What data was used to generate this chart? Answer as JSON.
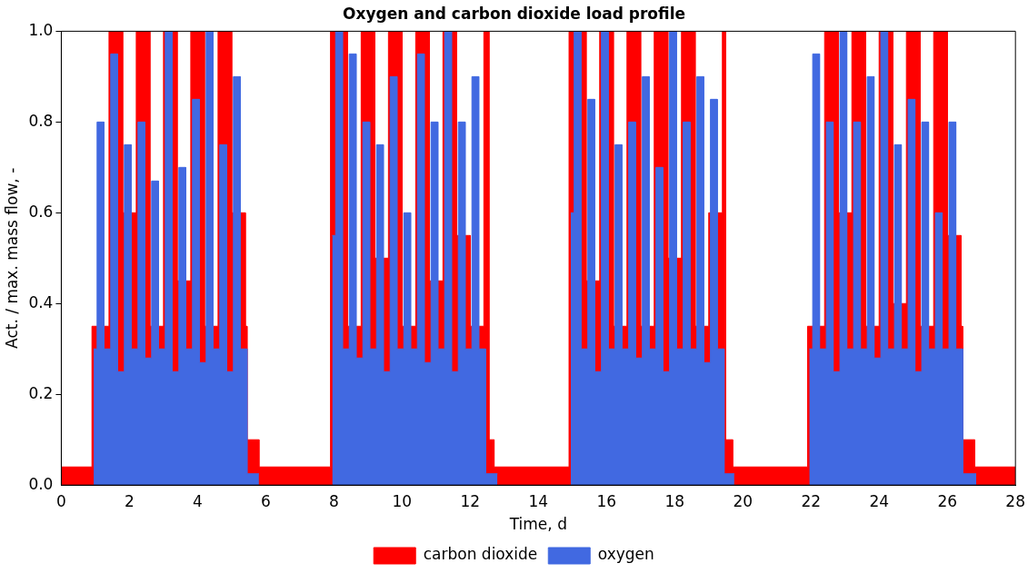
{
  "chart_data": {
    "type": "area",
    "title": "Oxygen and carbon dioxide load profile",
    "xlabel": "Time, d",
    "ylabel": "Act. / max. mass flow, -",
    "xlim": [
      0,
      28
    ],
    "xticks": [
      0,
      2,
      4,
      6,
      8,
      10,
      12,
      14,
      16,
      18,
      20,
      22,
      24,
      26,
      28
    ],
    "ylim": [
      0,
      1
    ],
    "yticks": [
      {
        "value": 0,
        "label": "0.0"
      },
      {
        "value": 0.2,
        "label": "0.2"
      },
      {
        "value": 0.4,
        "label": "0.4"
      },
      {
        "value": 0.6,
        "label": "0.6"
      },
      {
        "value": 0.8,
        "label": "0.8"
      },
      {
        "value": 1,
        "label": "1.0"
      }
    ],
    "grid": false,
    "legend": "bottom",
    "series": [
      {
        "name": "carbon dioxide",
        "color": "#ff0000",
        "x": [
          0,
          0.9,
          0.9,
          1.4,
          1.4,
          1.8,
          1.8,
          2.2,
          2.2,
          2.6,
          2.6,
          3.0,
          3.0,
          3.4,
          3.4,
          3.8,
          3.8,
          4.2,
          4.2,
          4.6,
          4.6,
          5.0,
          5.0,
          5.4,
          5.4,
          5.45,
          5.45,
          5.8,
          5.8,
          7.9,
          7.9,
          8.4,
          8.4,
          8.8,
          8.8,
          9.2,
          9.2,
          9.6,
          9.6,
          10.0,
          10.0,
          10.4,
          10.4,
          10.8,
          10.8,
          11.2,
          11.2,
          11.6,
          11.6,
          12.0,
          12.0,
          12.4,
          12.4,
          12.55,
          12.55,
          12.7,
          12.7,
          14.9,
          14.9,
          15.4,
          15.4,
          15.8,
          15.8,
          16.2,
          16.2,
          16.6,
          16.6,
          17.0,
          17.0,
          17.4,
          17.4,
          17.8,
          17.8,
          18.2,
          18.2,
          18.6,
          18.6,
          19.0,
          19.0,
          19.4,
          19.4,
          19.5,
          19.5,
          19.7,
          19.7,
          21.9,
          21.9,
          22.4,
          22.4,
          22.8,
          22.8,
          23.2,
          23.2,
          23.6,
          23.6,
          24.0,
          24.0,
          24.4,
          24.4,
          24.8,
          24.8,
          25.2,
          25.2,
          25.6,
          25.6,
          26.0,
          26.0,
          26.4,
          26.4,
          26.45,
          26.45,
          26.8,
          26.8,
          28
        ],
        "values": [
          0.04,
          0.04,
          0.35,
          0.35,
          1,
          1,
          0.6,
          0.6,
          1,
          1,
          0.35,
          0.35,
          1,
          1,
          0.45,
          0.45,
          1,
          1,
          0.35,
          0.35,
          1,
          1,
          0.6,
          0.6,
          0.35,
          0.35,
          0.1,
          0.1,
          0.04,
          0.04,
          1,
          1,
          0.35,
          0.35,
          1,
          1,
          0.5,
          0.5,
          1,
          1,
          0.35,
          0.35,
          1,
          1,
          0.45,
          0.45,
          1,
          1,
          0.55,
          0.55,
          0.35,
          0.35,
          1,
          1,
          0.1,
          0.1,
          0.04,
          0.04,
          1,
          1,
          0.45,
          0.45,
          1,
          1,
          0.35,
          0.35,
          1,
          1,
          0.35,
          0.35,
          1,
          1,
          0.5,
          0.5,
          1,
          1,
          0.35,
          0.35,
          0.6,
          0.6,
          1,
          1,
          0.1,
          0.1,
          0.04,
          0.04,
          0.35,
          0.35,
          1,
          1,
          0.6,
          0.6,
          1,
          1,
          0.35,
          0.35,
          1,
          1,
          0.4,
          0.4,
          1,
          1,
          0.35,
          0.35,
          1,
          1,
          0.55,
          0.55,
          0.35,
          0.35,
          0.1,
          0.1,
          0.04,
          0.04
        ]
      },
      {
        "name": "oxygen",
        "color": "#4169e1",
        "x": [
          0.95,
          1.05,
          1.05,
          1.25,
          1.25,
          1.45,
          1.45,
          1.65,
          1.65,
          1.85,
          1.85,
          2.05,
          2.05,
          2.25,
          2.25,
          2.45,
          2.45,
          2.65,
          2.65,
          2.85,
          2.85,
          3.05,
          3.05,
          3.25,
          3.25,
          3.45,
          3.45,
          3.65,
          3.65,
          3.85,
          3.85,
          4.05,
          4.05,
          4.25,
          4.25,
          4.45,
          4.45,
          4.65,
          4.65,
          4.85,
          4.85,
          5.05,
          5.05,
          5.25,
          5.25,
          5.45,
          5.45,
          5.8,
          6.5,
          7.95,
          8.05,
          8.05,
          8.25,
          8.25,
          8.45,
          8.45,
          8.65,
          8.65,
          8.85,
          8.85,
          9.05,
          9.05,
          9.25,
          9.25,
          9.45,
          9.45,
          9.65,
          9.65,
          9.85,
          9.85,
          10.05,
          10.05,
          10.25,
          10.25,
          10.45,
          10.45,
          10.65,
          10.65,
          10.85,
          10.85,
          11.05,
          11.05,
          11.25,
          11.25,
          11.45,
          11.45,
          11.65,
          11.65,
          11.85,
          11.85,
          12.05,
          12.05,
          12.25,
          12.25,
          12.45,
          12.45,
          12.8,
          13.5,
          14.95,
          15.05,
          15.05,
          15.25,
          15.25,
          15.45,
          15.45,
          15.65,
          15.65,
          15.85,
          15.85,
          16.05,
          16.05,
          16.25,
          16.25,
          16.45,
          16.45,
          16.65,
          16.65,
          16.85,
          16.85,
          17.05,
          17.05,
          17.25,
          17.25,
          17.45,
          17.45,
          17.65,
          17.65,
          17.85,
          17.85,
          18.05,
          18.05,
          18.25,
          18.25,
          18.45,
          18.45,
          18.65,
          18.65,
          18.85,
          18.85,
          19.05,
          19.05,
          19.25,
          19.25,
          19.45,
          19.45,
          19.75,
          20.5,
          21.95,
          22.05,
          22.05,
          22.25,
          22.25,
          22.45,
          22.45,
          22.65,
          22.65,
          22.85,
          22.85,
          23.05,
          23.05,
          23.25,
          23.25,
          23.45,
          23.45,
          23.65,
          23.65,
          23.85,
          23.85,
          24.05,
          24.05,
          24.25,
          24.25,
          24.45,
          24.45,
          24.65,
          24.65,
          24.85,
          24.85,
          25.05,
          25.05,
          25.25,
          25.25,
          25.45,
          25.45,
          25.65,
          25.65,
          25.85,
          25.85,
          26.05,
          26.05,
          26.25,
          26.25,
          26.45,
          26.45,
          26.85
        ],
        "values": [
          0.3,
          0.3,
          0.8,
          0.8,
          0.3,
          0.3,
          0.95,
          0.95,
          0.25,
          0.25,
          0.75,
          0.75,
          0.3,
          0.3,
          0.8,
          0.8,
          0.28,
          0.28,
          0.67,
          0.67,
          0.3,
          0.3,
          1,
          1,
          0.25,
          0.25,
          0.7,
          0.7,
          0.3,
          0.3,
          0.85,
          0.85,
          0.27,
          0.27,
          1,
          1,
          0.3,
          0.3,
          0.75,
          0.75,
          0.25,
          0.25,
          0.9,
          0.9,
          0.3,
          0.3,
          0.025,
          0.025,
          null,
          0.55,
          0.55,
          1,
          1,
          0.3,
          0.3,
          0.95,
          0.95,
          0.28,
          0.28,
          0.8,
          0.8,
          0.3,
          0.3,
          0.75,
          0.75,
          0.25,
          0.25,
          0.9,
          0.9,
          0.3,
          0.3,
          0.6,
          0.6,
          0.3,
          0.3,
          0.95,
          0.95,
          0.27,
          0.27,
          0.8,
          0.8,
          0.3,
          0.3,
          1,
          1,
          0.25,
          0.25,
          0.8,
          0.8,
          0.3,
          0.3,
          0.9,
          0.9,
          0.3,
          0.3,
          0.025,
          0.025,
          null,
          0.6,
          0.6,
          1,
          1,
          0.3,
          0.3,
          0.85,
          0.85,
          0.25,
          0.25,
          1,
          1,
          0.3,
          0.3,
          0.75,
          0.75,
          0.3,
          0.3,
          0.8,
          0.8,
          0.28,
          0.28,
          0.9,
          0.9,
          0.3,
          0.3,
          0.7,
          0.7,
          0.25,
          0.25,
          1,
          1,
          0.3,
          0.3,
          0.8,
          0.8,
          0.3,
          0.3,
          0.9,
          0.9,
          0.27,
          0.27,
          0.85,
          0.85,
          0.3,
          0.3,
          0.025,
          0.025,
          null,
          0.3,
          0.3,
          0.95,
          0.95,
          0.3,
          0.3,
          0.8,
          0.8,
          0.25,
          0.25,
          1,
          1,
          0.3,
          0.3,
          0.8,
          0.8,
          0.3,
          0.3,
          0.9,
          0.9,
          0.28,
          0.28,
          1,
          1,
          0.3,
          0.3,
          0.75,
          0.75,
          0.3,
          0.3,
          0.85,
          0.85,
          0.25,
          0.25,
          0.8,
          0.8,
          0.3,
          0.3,
          0.6,
          0.6,
          0.3,
          0.3,
          0.8,
          0.8,
          0.3,
          0.3,
          0.025,
          0.025
        ]
      }
    ]
  }
}
